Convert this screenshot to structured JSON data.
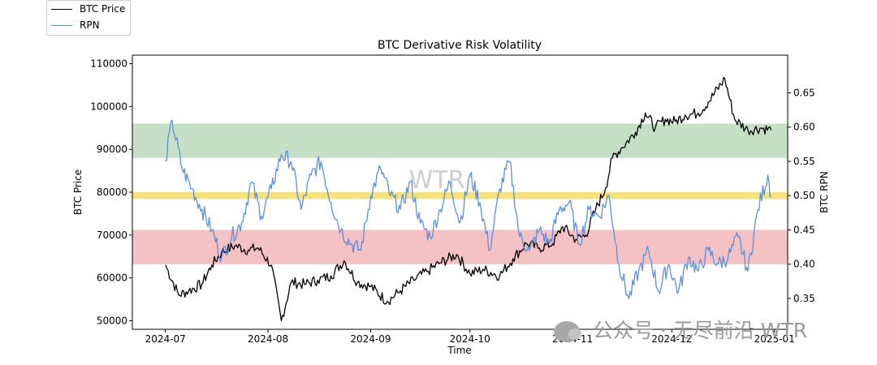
{
  "chart_data": {
    "type": "line",
    "title": "BTC Derivative Risk Volatility",
    "xlabel": "Time",
    "ylabel_left": "BTC Price",
    "ylabel_right": "BTC RPN",
    "x_ticks": [
      "2024-07",
      "2024-08",
      "2024-09",
      "2024-10",
      "2024-11",
      "2024-12",
      "2025-01"
    ],
    "y_left_ticks": [
      50000,
      60000,
      70000,
      80000,
      90000,
      100000,
      110000
    ],
    "y_right_ticks": [
      0.35,
      0.4,
      0.45,
      0.5,
      0.55,
      0.6,
      0.65
    ],
    "y_left_lim": [
      48000,
      112000
    ],
    "y_right_lim": [
      0.305,
      0.705
    ],
    "x_lim": [
      "2024-06-21",
      "2025-01-05"
    ],
    "legend": {
      "position": "top-left",
      "entries": [
        "BTC Price",
        "RPN"
      ]
    },
    "bands_rpn": [
      {
        "from": 0.555,
        "to": 0.605,
        "color": "#c6e0c6"
      },
      {
        "from": 0.495,
        "to": 0.505,
        "color": "#f6e27a"
      },
      {
        "from": 0.4,
        "to": 0.45,
        "color": "#f4c2c2"
      }
    ],
    "series": [
      {
        "name": "BTC Price",
        "axis": "left",
        "color": "#000000",
        "x": [
          "2024-07-01",
          "2024-07-05",
          "2024-07-08",
          "2024-07-12",
          "2024-07-15",
          "2024-07-18",
          "2024-07-22",
          "2024-07-26",
          "2024-07-29",
          "2024-08-02",
          "2024-08-05",
          "2024-08-08",
          "2024-08-12",
          "2024-08-16",
          "2024-08-20",
          "2024-08-24",
          "2024-08-28",
          "2024-09-01",
          "2024-09-06",
          "2024-09-10",
          "2024-09-14",
          "2024-09-18",
          "2024-09-22",
          "2024-09-27",
          "2024-10-01",
          "2024-10-05",
          "2024-10-10",
          "2024-10-14",
          "2024-10-18",
          "2024-10-22",
          "2024-10-26",
          "2024-10-29",
          "2024-11-02",
          "2024-11-05",
          "2024-11-08",
          "2024-11-11",
          "2024-11-13",
          "2024-11-16",
          "2024-11-20",
          "2024-11-23",
          "2024-11-26",
          "2024-11-29",
          "2024-12-02",
          "2024-12-05",
          "2024-12-09",
          "2024-12-12",
          "2024-12-17",
          "2024-12-20",
          "2024-12-24",
          "2024-12-28",
          "2024-12-31"
        ],
        "values": [
          63000,
          56000,
          57000,
          58500,
          63000,
          66000,
          67500,
          66500,
          67000,
          63000,
          50000,
          59000,
          58500,
          59500,
          60500,
          64000,
          59000,
          58000,
          54500,
          57000,
          59500,
          61500,
          63500,
          65500,
          61000,
          62000,
          60500,
          64500,
          68000,
          67000,
          68000,
          72000,
          69000,
          70000,
          76000,
          81000,
          88000,
          90500,
          94000,
          98500,
          95000,
          97000,
          96500,
          98000,
          98500,
          101000,
          106500,
          97000,
          94500,
          95000,
          94500
        ]
      },
      {
        "name": "RPN",
        "axis": "right",
        "color": "#5b8fe3",
        "x": [
          "2024-07-01",
          "2024-07-03",
          "2024-07-06",
          "2024-07-09",
          "2024-07-12",
          "2024-07-15",
          "2024-07-18",
          "2024-07-21",
          "2024-07-24",
          "2024-07-27",
          "2024-07-30",
          "2024-08-02",
          "2024-08-05",
          "2024-08-08",
          "2024-08-11",
          "2024-08-14",
          "2024-08-17",
          "2024-08-20",
          "2024-08-23",
          "2024-08-26",
          "2024-08-29",
          "2024-09-01",
          "2024-09-04",
          "2024-09-07",
          "2024-09-10",
          "2024-09-13",
          "2024-09-16",
          "2024-09-19",
          "2024-09-22",
          "2024-09-25",
          "2024-09-28",
          "2024-10-01",
          "2024-10-04",
          "2024-10-07",
          "2024-10-10",
          "2024-10-13",
          "2024-10-16",
          "2024-10-19",
          "2024-10-22",
          "2024-10-25",
          "2024-10-28",
          "2024-10-31",
          "2024-11-03",
          "2024-11-06",
          "2024-11-09",
          "2024-11-12",
          "2024-11-15",
          "2024-11-18",
          "2024-11-21",
          "2024-11-24",
          "2024-11-27",
          "2024-11-30",
          "2024-12-03",
          "2024-12-06",
          "2024-12-09",
          "2024-12-12",
          "2024-12-15",
          "2024-12-18",
          "2024-12-21",
          "2024-12-24",
          "2024-12-27",
          "2024-12-30",
          "2024-12-31"
        ],
        "values": [
          0.55,
          0.61,
          0.54,
          0.51,
          0.48,
          0.45,
          0.41,
          0.44,
          0.46,
          0.52,
          0.47,
          0.51,
          0.56,
          0.55,
          0.48,
          0.53,
          0.55,
          0.49,
          0.45,
          0.43,
          0.42,
          0.5,
          0.54,
          0.5,
          0.48,
          0.52,
          0.46,
          0.44,
          0.48,
          0.52,
          0.46,
          0.53,
          0.49,
          0.42,
          0.51,
          0.55,
          0.44,
          0.42,
          0.45,
          0.43,
          0.48,
          0.49,
          0.43,
          0.48,
          0.47,
          0.5,
          0.4,
          0.35,
          0.39,
          0.42,
          0.36,
          0.4,
          0.36,
          0.41,
          0.39,
          0.42,
          0.4,
          0.41,
          0.44,
          0.39,
          0.48,
          0.53,
          0.5
        ]
      }
    ]
  },
  "watermark": {
    "text": "WTR"
  },
  "credit": {
    "text": "公众号 · 无尽前沿 WTR"
  }
}
